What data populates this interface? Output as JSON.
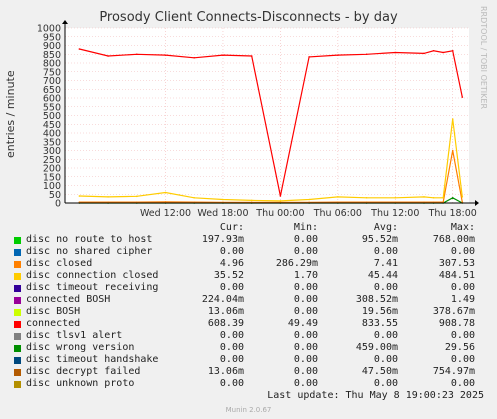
{
  "title": "Prosody Client Connects-Disconnects - by day",
  "side_label": "RRDTOOL / TOBI OETIKER",
  "footer": "Last update: Thu May  8 19:00:23 2025",
  "munin": "Munin 2.0.67",
  "legend_headers": {
    "cur": "Cur:",
    "min": "Min:",
    "avg": "Avg:",
    "max": "Max:"
  },
  "legend": [
    {
      "name": "disc no route to host",
      "color": "#00cc00",
      "cur": "197.93m",
      "min": "0.00",
      "avg": "95.52m",
      "max": "768.00m"
    },
    {
      "name": "disc no shared cipher",
      "color": "#0066b3",
      "cur": "0.00",
      "min": "0.00",
      "avg": "0.00",
      "max": "0.00"
    },
    {
      "name": "disc closed",
      "color": "#ff8000",
      "cur": "4.96",
      "min": "286.29m",
      "avg": "7.41",
      "max": "307.53"
    },
    {
      "name": "disc connection closed",
      "color": "#ffcc00",
      "cur": "35.52",
      "min": "1.70",
      "avg": "45.44",
      "max": "484.51"
    },
    {
      "name": "disc timeout receiving",
      "color": "#330099",
      "cur": "0.00",
      "min": "0.00",
      "avg": "0.00",
      "max": "0.00"
    },
    {
      "name": "connected BOSH",
      "color": "#990099",
      "cur": "224.04m",
      "min": "0.00",
      "avg": "308.52m",
      "max": "1.49"
    },
    {
      "name": "disc BOSH",
      "color": "#ccff00",
      "cur": "13.06m",
      "min": "0.00",
      "avg": "19.56m",
      "max": "378.67m"
    },
    {
      "name": "connected",
      "color": "#ff0000",
      "cur": "608.39",
      "min": "49.49",
      "avg": "833.55",
      "max": "908.78"
    },
    {
      "name": "disc tlsv1 alert",
      "color": "#808080",
      "cur": "0.00",
      "min": "0.00",
      "avg": "0.00",
      "max": "0.00"
    },
    {
      "name": "disc wrong version",
      "color": "#008f00",
      "cur": "0.00",
      "min": "0.00",
      "avg": "459.00m",
      "max": "29.56"
    },
    {
      "name": "disc timeout handshake",
      "color": "#00487d",
      "cur": "0.00",
      "min": "0.00",
      "avg": "0.00",
      "max": "0.00"
    },
    {
      "name": "disc decrypt failed",
      "color": "#b35a00",
      "cur": "13.06m",
      "min": "0.00",
      "avg": "47.50m",
      "max": "754.97m"
    },
    {
      "name": "disc unknown proto",
      "color": "#b38f00",
      "cur": "0.00",
      "min": "0.00",
      "avg": "0.00",
      "max": "0.00"
    }
  ],
  "chart_data": {
    "type": "line",
    "title": "Prosody Client Connects-Disconnects - by day",
    "ylabel": "entries / minute",
    "ylim": [
      0,
      1000
    ],
    "yticks": [
      "0",
      "50",
      "100",
      "150",
      "200",
      "250",
      "300",
      "350",
      "400",
      "450",
      "500",
      "550",
      "600",
      "650",
      "700",
      "750",
      "800",
      "850",
      "900",
      "950",
      "1000"
    ],
    "xticks": [
      "Wed 12:00",
      "Wed 18:00",
      "Thu 00:00",
      "Thu 06:00",
      "Thu 12:00",
      "Thu 18:00"
    ],
    "x_hours": [
      -9,
      -6,
      -3,
      0,
      3,
      6,
      9,
      12,
      15,
      18,
      21,
      24,
      27,
      28,
      29,
      30,
      31
    ],
    "series": [
      {
        "name": "connected",
        "color": "#ff0000",
        "values": [
          880,
          840,
          850,
          845,
          830,
          845,
          840,
          40,
          835,
          845,
          850,
          860,
          855,
          870,
          860,
          870,
          605
        ]
      },
      {
        "name": "disc connection closed",
        "color": "#ffcc00",
        "values": [
          40,
          35,
          38,
          60,
          30,
          20,
          15,
          12,
          20,
          35,
          30,
          30,
          35,
          30,
          30,
          480,
          35
        ]
      },
      {
        "name": "disc closed",
        "color": "#ff8000",
        "values": [
          5,
          5,
          5,
          6,
          5,
          4,
          4,
          4,
          4,
          5,
          5,
          5,
          5,
          5,
          5,
          300,
          5
        ]
      },
      {
        "name": "disc wrong version",
        "color": "#008f00",
        "values": [
          0,
          0,
          0,
          0,
          0,
          0,
          0,
          0,
          0,
          0,
          0,
          0,
          0,
          0,
          0,
          29.56,
          0
        ]
      }
    ],
    "grid": true
  }
}
